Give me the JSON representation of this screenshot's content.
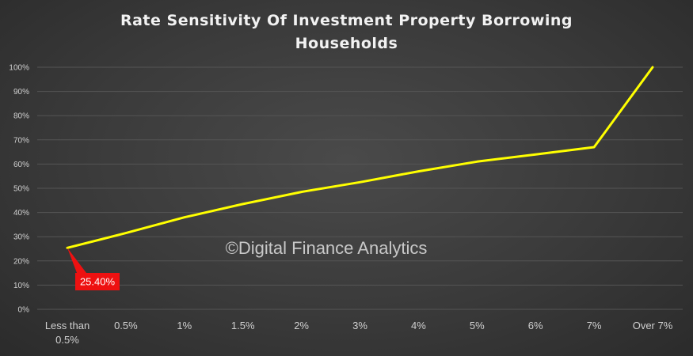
{
  "chart_data": {
    "type": "line",
    "title": "Rate Sensitivity  Of Investment Property Borrowing Households",
    "title_lines": [
      "Rate Sensitivity  Of Investment Property Borrowing",
      "Households"
    ],
    "categories": [
      "Less than 0.5%",
      "0.5%",
      "1%",
      "1.5%",
      "2%",
      "3%",
      "4%",
      "5%",
      "6%",
      "7%",
      "Over 7%"
    ],
    "category_lines": [
      [
        "Less than",
        "0.5%"
      ],
      [
        "0.5%"
      ],
      [
        "1%"
      ],
      [
        "1.5%"
      ],
      [
        "2%"
      ],
      [
        "3%"
      ],
      [
        "4%"
      ],
      [
        "5%"
      ],
      [
        "6%"
      ],
      [
        "7%"
      ],
      [
        "Over 7%"
      ]
    ],
    "series": [
      {
        "values": [
          25.4,
          31.5,
          38,
          43.5,
          48.5,
          52.5,
          57,
          61,
          64,
          67,
          100
        ]
      }
    ],
    "ylim": [
      0,
      100
    ],
    "yticks": [
      "0%",
      "10%",
      "20%",
      "30%",
      "40%",
      "50%",
      "60%",
      "70%",
      "80%",
      "90%",
      "100%"
    ],
    "grid": true,
    "legend": "none",
    "annotation": {
      "label": "25.40%",
      "category_index": 0
    },
    "watermark": "©Digital Finance Analytics",
    "colors": {
      "line": "#ffff00",
      "grid": "#555555",
      "callout": "#ee1111"
    }
  }
}
